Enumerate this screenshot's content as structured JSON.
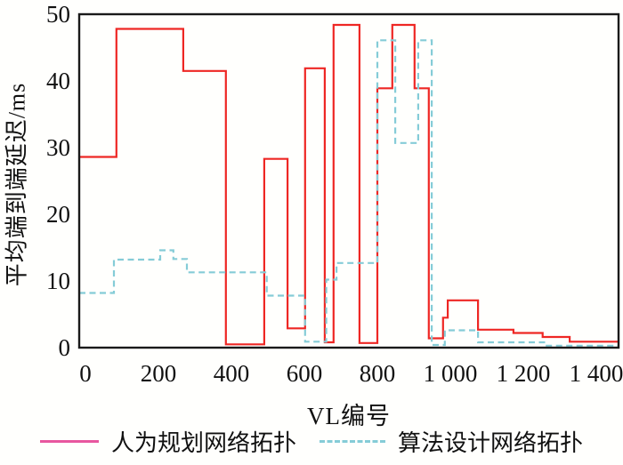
{
  "chart_data": {
    "type": "line",
    "subtype": "step",
    "title": "",
    "xlabel": "VL编号",
    "ylabel": "平均端到端延迟/ms",
    "xlim": [
      -17,
      1461
    ],
    "ylim": [
      0,
      50
    ],
    "grid": false,
    "legend_position": "bottom-center",
    "x_ticks": {
      "values": [
        0,
        200,
        400,
        600,
        800,
        1000,
        1200,
        1400
      ],
      "labels": [
        "0",
        "200",
        "400",
        "600",
        "800",
        "1 000",
        "1 200",
        "1 400"
      ]
    },
    "y_ticks": {
      "values": [
        0,
        10,
        20,
        30,
        40,
        50
      ],
      "labels": [
        "0",
        "10",
        "20",
        "30",
        "40",
        "50"
      ]
    },
    "series": [
      {
        "name": "人为规划网络拓扑",
        "style": "solid",
        "color": "#ee2724",
        "legend_color": "#e8579f",
        "step_edges": [
          -17,
          85,
          268,
          385,
          490,
          554,
          602,
          656,
          680,
          751,
          800,
          841,
          902,
          941,
          980,
          993,
          1076,
          1173,
          1253,
          1327,
          1461
        ],
        "step_values": [
          28.6,
          47.8,
          41.5,
          0.5,
          28.3,
          2.9,
          41.9,
          0.8,
          48.4,
          0.7,
          38.9,
          48.4,
          38.9,
          1.4,
          4.5,
          7.1,
          2.7,
          2.2,
          1.6,
          0.9
        ]
      },
      {
        "name": "算法设计网络拓扑",
        "style": "dashed",
        "color": "#85ccd7",
        "legend_color": "#85ccd7",
        "step_edges": [
          -17,
          78,
          205,
          241,
          278,
          497,
          602,
          660,
          688,
          800,
          849,
          912,
          949,
          985,
          1076,
          1261,
          1461
        ],
        "step_values": [
          8.2,
          13.2,
          14.6,
          13.3,
          11.3,
          7.8,
          0.9,
          10.2,
          12.7,
          46.1,
          30.7,
          46.1,
          0.4,
          2.6,
          0.8,
          0.3
        ]
      }
    ],
    "axis_color": "#1a1a1a"
  }
}
